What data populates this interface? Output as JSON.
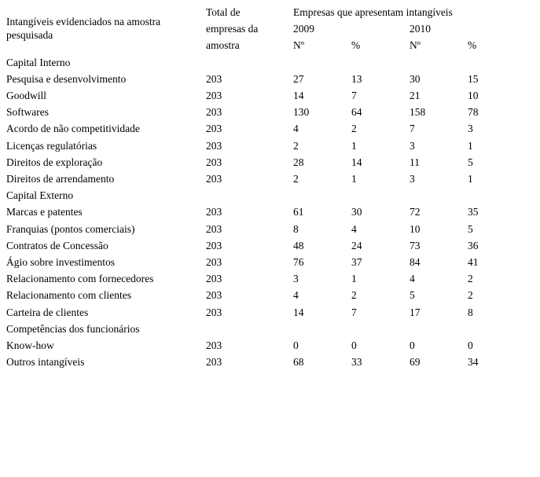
{
  "page": {
    "background_color": "#ffffff",
    "text_color": "#000000"
  },
  "table": {
    "headers": {
      "row_label": "Intangíveis evidenciados na amostra pesquisada",
      "total": "Total de empresas da amostra",
      "group": "Empresas que apresentam intangíveis",
      "years": [
        "2009",
        "2010"
      ],
      "count_label": "Nº",
      "percent_label": "%"
    },
    "rows": [
      {
        "label": "Capital Interno",
        "section": true
      },
      {
        "label": "Pesquisa e desenvolvimento",
        "total": "203",
        "n2009": "27",
        "p2009": "13",
        "n2010": "30",
        "p2010": "15"
      },
      {
        "label": "Goodwill",
        "total": "203",
        "n2009": "14",
        "p2009": "7",
        "n2010": "21",
        "p2010": "10"
      },
      {
        "label": "Softwares",
        "total": "203",
        "n2009": "130",
        "p2009": "64",
        "n2010": "158",
        "p2010": "78"
      },
      {
        "label": "Acordo de não competitividade",
        "total": "203",
        "n2009": "4",
        "p2009": "2",
        "n2010": "7",
        "p2010": "3"
      },
      {
        "label": "Licenças regulatórias",
        "total": "203",
        "n2009": "2",
        "p2009": "1",
        "n2010": "3",
        "p2010": "1"
      },
      {
        "label": "Direitos de exploração",
        "total": "203",
        "n2009": "28",
        "p2009": "14",
        "n2010": "11",
        "p2010": "5"
      },
      {
        "label": "Direitos de arrendamento",
        "total": "203",
        "n2009": "2",
        "p2009": "1",
        "n2010": "3",
        "p2010": "1"
      },
      {
        "label": "Capital Externo",
        "section": true
      },
      {
        "label": "Marcas e patentes",
        "total": "203",
        "n2009": "61",
        "p2009": "30",
        "n2010": "72",
        "p2010": "35"
      },
      {
        "label": "Franquias (pontos comerciais)",
        "total": "203",
        "n2009": "8",
        "p2009": "4",
        "n2010": "10",
        "p2010": "5"
      },
      {
        "label": "Contratos de Concessão",
        "total": "203",
        "n2009": "48",
        "p2009": "24",
        "n2010": "73",
        "p2010": "36"
      },
      {
        "label": "Ágio sobre investimentos",
        "total": "203",
        "n2009": "76",
        "p2009": "37",
        "n2010": "84",
        "p2010": "41"
      },
      {
        "label": "Relacionamento com fornecedores",
        "total": "203",
        "n2009": "3",
        "p2009": "1",
        "n2010": "4",
        "p2010": "2"
      },
      {
        "label": "Relacionamento com clientes",
        "total": "203",
        "n2009": "4",
        "p2009": "2",
        "n2010": "5",
        "p2010": "2"
      },
      {
        "label": "Carteira de clientes",
        "total": "203",
        "n2009": "14",
        "p2009": "7",
        "n2010": "17",
        "p2010": "8"
      },
      {
        "label": "Competências dos funcionários",
        "section": true
      },
      {
        "label": "Know-how",
        "total": "203",
        "n2009": "0",
        "p2009": "0",
        "n2010": "0",
        "p2010": "0"
      },
      {
        "label": "Outros intangíveis",
        "total": "203",
        "n2009": "68",
        "p2009": "33",
        "n2010": "69",
        "p2010": "34"
      }
    ]
  }
}
